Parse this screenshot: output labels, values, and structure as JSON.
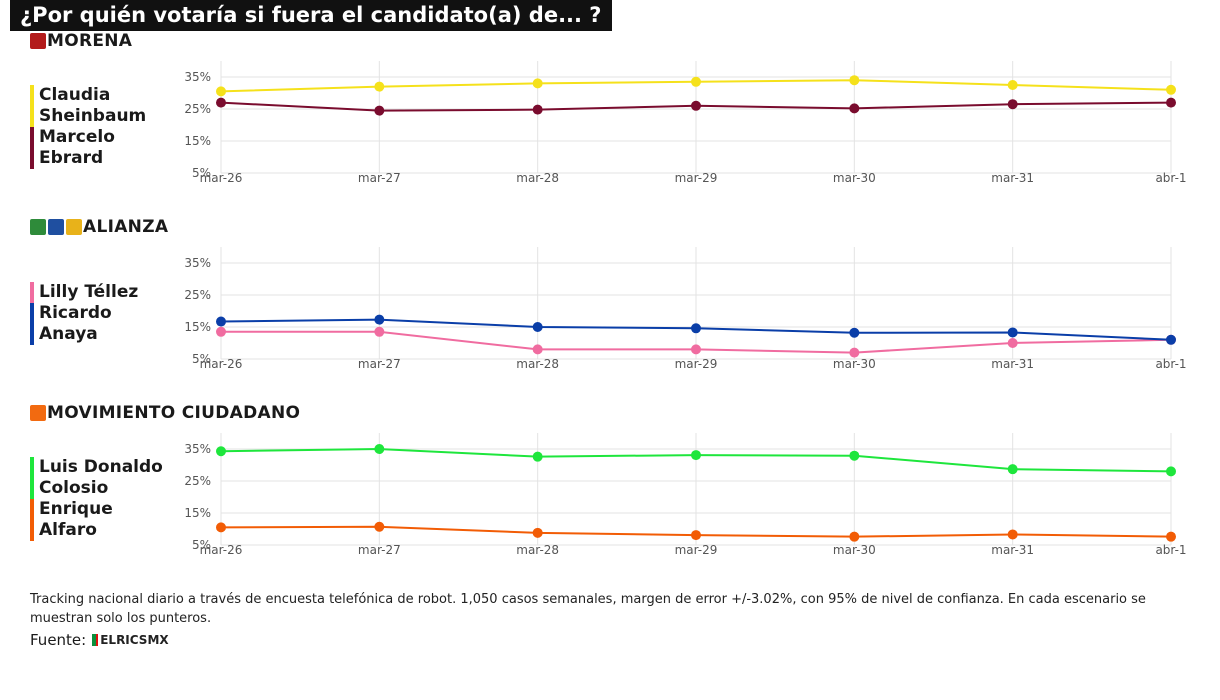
{
  "title": "¿Por quién votaría si fuera el candidato(a) de... ?",
  "footnote": "Tracking nacional diario a través de encuesta telefónica de robot. 1,050 casos semanales, margen de error +/-3.02%, con 95% de nivel de confianza. En cada escenario se muestran solo los punteros.",
  "source_label": "Fuente:",
  "source_brand": "ELRICSMX",
  "chart_data": [
    {
      "type": "line",
      "party": "MORENA",
      "party_logos": [
        {
          "name": "morena-logo-icon",
          "color": "#b31b1b"
        }
      ],
      "categories": [
        "mar-26",
        "mar-27",
        "mar-28",
        "mar-29",
        "mar-30",
        "mar-31",
        "abr-1"
      ],
      "yticks": [
        "5%",
        "15%",
        "25%",
        "35%"
      ],
      "ylim": [
        5,
        40
      ],
      "grid": true,
      "series": [
        {
          "name": "Claudia\nSheinbaum",
          "color": "#f5e11b",
          "values": [
            30.5,
            32.0,
            33.0,
            33.5,
            34.0,
            32.5,
            31.0
          ]
        },
        {
          "name": "Marcelo\nEbrard",
          "color": "#7a0c2e",
          "values": [
            27.0,
            24.5,
            24.8,
            26.0,
            25.2,
            26.5,
            27.0
          ]
        }
      ]
    },
    {
      "type": "line",
      "party": "ALIANZA",
      "party_logos": [
        {
          "name": "pri-logo-icon",
          "color": "#2e8b3a"
        },
        {
          "name": "pan-logo-icon",
          "color": "#1f4fa0"
        },
        {
          "name": "prd-logo-icon",
          "color": "#e8b21a"
        }
      ],
      "categories": [
        "mar-26",
        "mar-27",
        "mar-28",
        "mar-29",
        "mar-30",
        "mar-31",
        "abr-1"
      ],
      "yticks": [
        "5%",
        "15%",
        "25%",
        "35%"
      ],
      "ylim": [
        5,
        40
      ],
      "grid": true,
      "series": [
        {
          "name": "Lilly Téllez",
          "color": "#f06ca0",
          "values": [
            13.5,
            13.5,
            8.0,
            8.0,
            7.0,
            10.0,
            11.0
          ]
        },
        {
          "name": "Ricardo\nAnaya",
          "color": "#0a3ea8",
          "values": [
            16.7,
            17.3,
            15.0,
            14.6,
            13.2,
            13.3,
            11.0
          ]
        }
      ]
    },
    {
      "type": "line",
      "party": "MOVIMIENTO CIUDADANO",
      "party_logos": [
        {
          "name": "mc-logo-icon",
          "color": "#f26a10"
        }
      ],
      "categories": [
        "mar-26",
        "mar-27",
        "mar-28",
        "mar-29",
        "mar-30",
        "mar-31",
        "abr-1"
      ],
      "yticks": [
        "5%",
        "15%",
        "25%",
        "35%"
      ],
      "ylim": [
        5,
        40
      ],
      "grid": true,
      "series": [
        {
          "name": "Luis Donaldo\nColosio",
          "color": "#1ee63c",
          "values": [
            34.3,
            35.0,
            32.6,
            33.1,
            32.9,
            28.7,
            28.0
          ]
        },
        {
          "name": "Enrique\nAlfaro",
          "color": "#f25c05",
          "values": [
            10.5,
            10.7,
            8.8,
            8.1,
            7.6,
            8.3,
            7.6
          ]
        }
      ]
    }
  ]
}
